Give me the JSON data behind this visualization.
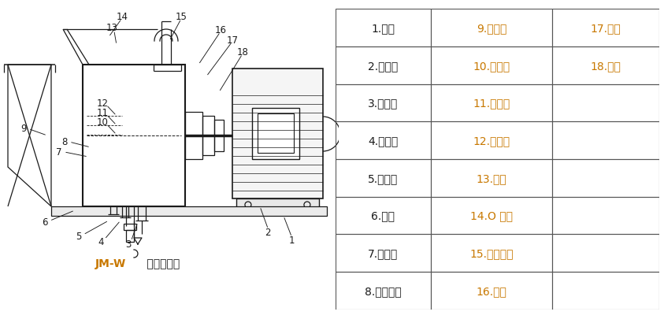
{
  "table_data": [
    [
      "1.底座",
      "9.加料斗",
      "17.轴承"
    ],
    [
      "2.电动机",
      "10.旋叶刀",
      "18.端盖"
    ],
    [
      "3.排漏口",
      "11.动磨盘",
      ""
    ],
    [
      "4.出料口",
      "12.静磨盘",
      ""
    ],
    [
      "5.循环管",
      "13.刻度",
      ""
    ],
    [
      "6.手柄",
      "14.O 型圈",
      ""
    ],
    [
      "7.调节盘",
      "15.机械密封",
      ""
    ],
    [
      "8.冷却接头",
      "16.壳体",
      ""
    ]
  ],
  "col1_color": "#1a1a1a",
  "col2_color": "#c87800",
  "col3_color": "#c87800",
  "caption_jmw": "JM-W",
  "caption_rest": " 卧式胶体磨",
  "caption_jmw_color": "#c87800",
  "caption_rest_color": "#1a1a1a",
  "bg_color": "#ffffff",
  "border_color": "#555555",
  "line_color": "#1a1a1a",
  "lw": 0.9
}
